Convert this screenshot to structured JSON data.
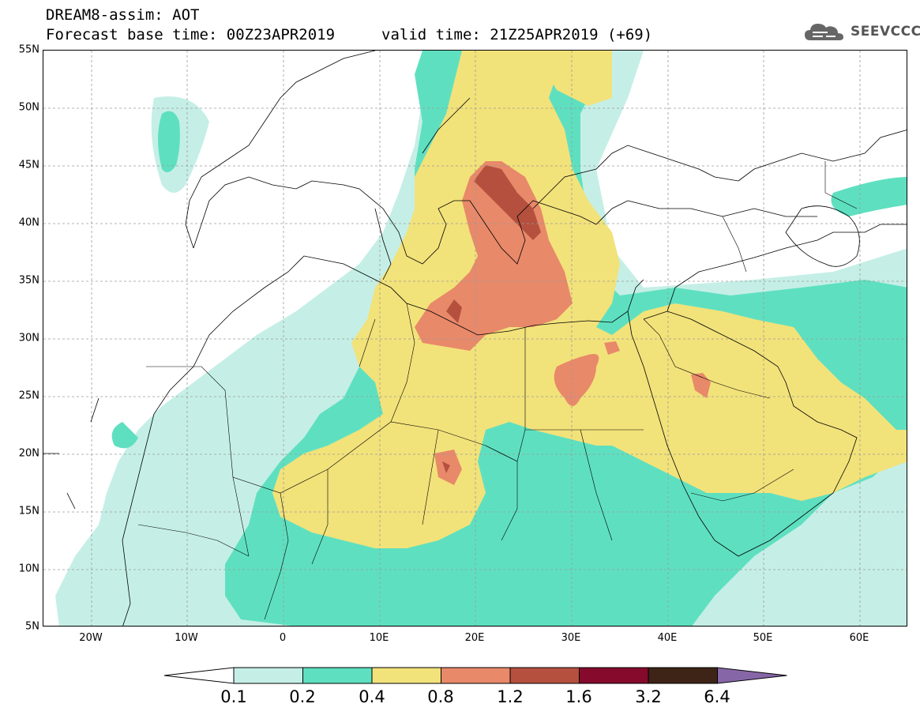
{
  "header": {
    "title": "DREAM8-assim: AOT",
    "base_time": "Forecast base time: 00Z23APR2019",
    "valid_time": "valid time: 21Z25APR2019 (+69)"
  },
  "logo": {
    "text": "SEEVCCC",
    "icon": "cloud-icon"
  },
  "map": {
    "variable": "Aerosol optical thickness",
    "lat_range": [
      5,
      55
    ],
    "lon_range": [
      -25,
      65
    ],
    "lat_labels": [
      "55N",
      "50N",
      "45N",
      "40N",
      "35N",
      "30N",
      "25N",
      "20N",
      "15N",
      "10N",
      "5N"
    ],
    "lon_labels": [
      "20W",
      "10W",
      "0",
      "10E",
      "20E",
      "30E",
      "40E",
      "50E",
      "60E"
    ],
    "grid": "dashed gray"
  },
  "colorbar": {
    "labels": [
      "0.1",
      "0.2",
      "0.4",
      "0.8",
      "1.2",
      "1.6",
      "3.2",
      "6.4"
    ],
    "colors": [
      "#ffffff",
      "#c5efe6",
      "#5ee0c0",
      "#f2e27a",
      "#e8896a",
      "#b5503e",
      "#850a2c",
      "#3d2416",
      "#8766a8"
    ],
    "extends": "both"
  }
}
